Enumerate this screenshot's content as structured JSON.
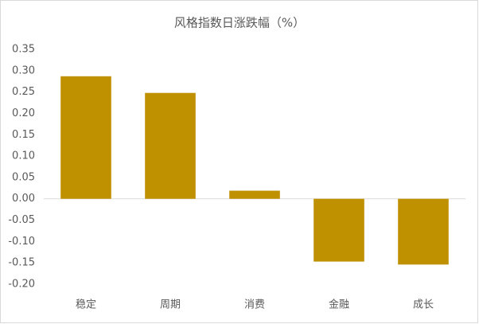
{
  "chart_data": {
    "type": "bar",
    "title": "风格指数日涨跌幅（%）",
    "categories": [
      "稳定",
      "周期",
      "消费",
      "金融",
      "成长"
    ],
    "values": [
      0.287,
      0.248,
      0.019,
      -0.147,
      -0.154
    ],
    "color": "#bf9000",
    "ylim": [
      -0.2,
      0.35
    ],
    "yticks": [
      {
        "value": -0.2,
        "label": "-0.20"
      },
      -0.15,
      {
        "value": -0.1,
        "label": "-0.10"
      },
      -0.05,
      {
        "value": 0,
        "label": "0.00"
      },
      0.05,
      {
        "value": 0.1,
        "label": "0.10"
      },
      0.15,
      {
        "value": 0.2,
        "label": "0.20"
      },
      0.25,
      {
        "value": 0.3,
        "label": "0.30"
      },
      0.35
    ],
    "grid": false
  }
}
